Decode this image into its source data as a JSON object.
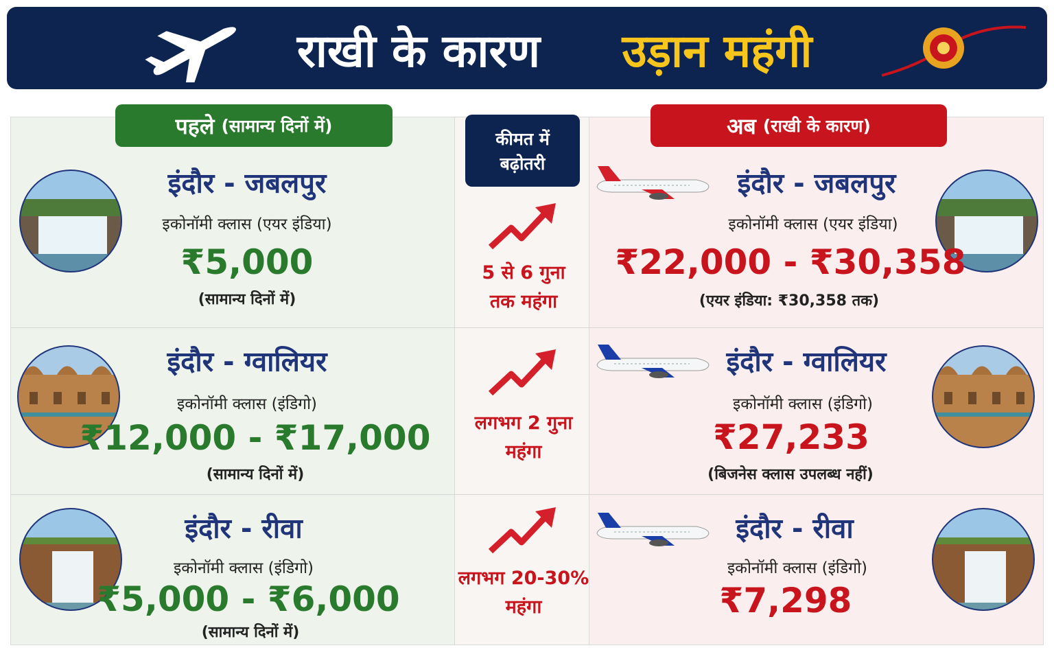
{
  "header": {
    "title_main": "राखी के कारण",
    "title_highlight": "उड़ान महंगी"
  },
  "panels": {
    "before": {
      "title": "पहले",
      "subtitle": "(सामान्य दिनों में)"
    },
    "increase": {
      "title": [
        "कीमत में",
        "बढ़ोतरी"
      ]
    },
    "after": {
      "title": "अब",
      "subtitle": "(राखी के कारण)"
    }
  },
  "rows": [
    {
      "route": "इंदौर - जबलपुर",
      "before": {
        "class": "इकोनॉमी क्लास (एयर इंडिया)",
        "price": "₹5,000",
        "note": "(सामान्य दिनों में)"
      },
      "increase": [
        "5 से 6 गुना",
        "तक महंगा"
      ],
      "after": {
        "class": "इकोनॉमी क्लास (एयर इंडिया)",
        "price": "₹22,000 - ₹30,358",
        "note": "(एयर इंडिया: ₹30,358 तक)"
      }
    },
    {
      "route": "इंदौर - ग्वालियर",
      "before": {
        "class": "इकोनॉमी क्लास (इंडिगो)",
        "price": "₹12,000 - ₹17,000",
        "note": "(सामान्य दिनों में)"
      },
      "increase": [
        "लगभग 2 गुना",
        "महंगा"
      ],
      "after": {
        "class": "इकोनॉमी क्लास (इंडिगो)",
        "price": "₹27,233",
        "note": "(बिजनेस क्लास उपलब्ध नहीं)"
      }
    },
    {
      "route": "इंदौर - रीवा",
      "before": {
        "class": "इकोनॉमी क्लास (इंडिगो)",
        "price": "₹5,000 - ₹6,000",
        "note": "(सामान्य दिनों में)"
      },
      "increase": [
        "लगभग 20-30%",
        "महंगा"
      ],
      "after": {
        "class": "इकोनॉमी क्लास (इंडिगो)",
        "price": "₹7,298"
      }
    }
  ]
}
